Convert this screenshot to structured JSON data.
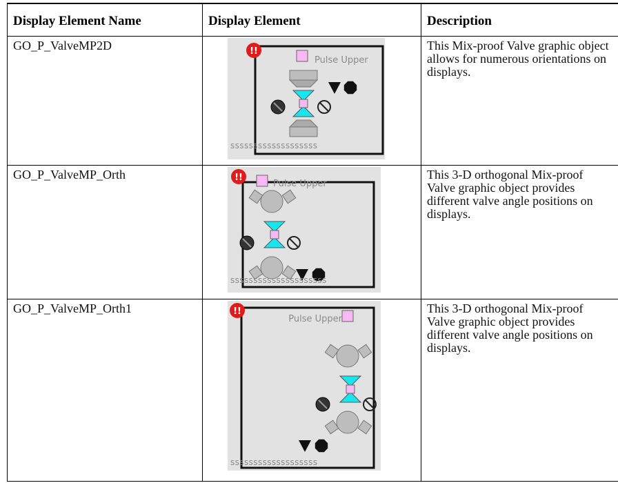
{
  "table": {
    "headers": [
      "Display Element Name",
      "Display Element",
      "Description"
    ],
    "rows": [
      {
        "name": "GO_P_ValveMP2D",
        "graphic": {
          "alarm": "!!",
          "label": "Pulse Upper",
          "footer": "sssssssssssssssssss"
        },
        "description": "This Mix-proof Valve graphic object allows for numerous orientations on displays."
      },
      {
        "name": "GO_P_ValveMP_Orth",
        "graphic": {
          "alarm": "!!",
          "label": "Pulse Upper",
          "footer": "sssssssssssssssssssss"
        },
        "description": "This 3-D orthogonal Mix-proof Valve graphic object provides different valve angle positions on displays."
      },
      {
        "name": "GO_P_ValveMP_Orth1",
        "graphic": {
          "alarm": "!!",
          "label": "Pulse Upper",
          "footer": "sssssssssssssssssss"
        },
        "description": "This 3-D orthogonal Mix-proof Valve graphic object provides different valve angle positions on displays."
      }
    ]
  }
}
